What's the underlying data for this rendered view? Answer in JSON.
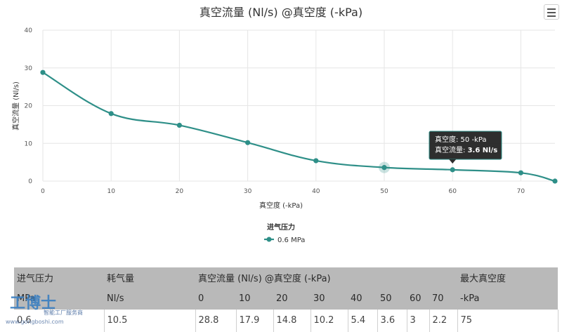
{
  "chart_data": {
    "type": "line",
    "title": "真空流量 (Nl/s) @真空度 (-kPa)",
    "xlabel": "真空度 (-kPa)",
    "ylabel": "真空流量 (Nl/s)",
    "xlim": [
      0,
      75
    ],
    "ylim": [
      0,
      40
    ],
    "x_ticks": [
      0,
      10,
      20,
      30,
      40,
      50,
      60,
      70
    ],
    "y_ticks": [
      0,
      10,
      20,
      30,
      40
    ],
    "grid": true,
    "legend": {
      "title": "进气压力",
      "placement": "bottom-center"
    },
    "series": [
      {
        "name": "0.6 MPa",
        "color": "#2e8f88",
        "x": [
          0,
          10,
          20,
          30,
          40,
          50,
          60,
          70,
          75
        ],
        "y": [
          28.8,
          17.9,
          14.8,
          10.2,
          5.4,
          3.6,
          3.0,
          2.2,
          0
        ]
      }
    ],
    "tooltip": {
      "x_index": 5,
      "line1": "真空度: 50 -kPa",
      "line2_label": "真空流量: ",
      "line2_value": "3.6 Nl/s"
    }
  },
  "table": {
    "header_row1": [
      "进气压力",
      "耗气量",
      "真空流量 (Nl/s) @真空度 (-kPa)",
      "最大真空度"
    ],
    "header_row2": [
      "MPa",
      "Nl/s",
      "0",
      "10",
      "20",
      "30",
      "40",
      "50",
      "60",
      "70",
      "-kPa"
    ],
    "data_row": [
      "0.6",
      "10.5",
      "28.8",
      "17.9",
      "14.8",
      "10.2",
      "5.4",
      "3.6",
      "3",
      "2.2",
      "75"
    ]
  },
  "watermark": {
    "logo": "工博士",
    "sub": "智能工厂服务商",
    "url": "www.gongboshi.com"
  },
  "menu_icon": "hamburger-menu-icon"
}
